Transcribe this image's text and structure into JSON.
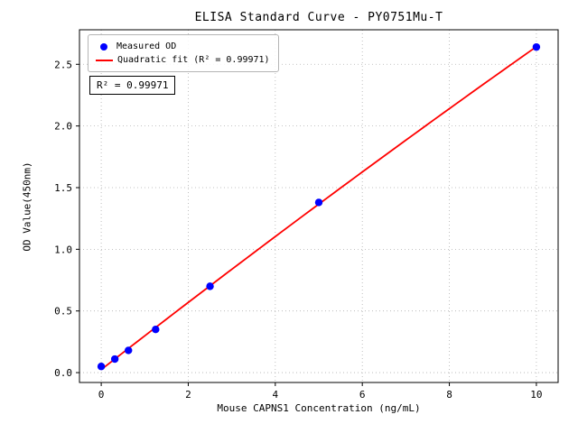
{
  "figure": {
    "background": "#ffffff"
  },
  "chart_data": {
    "type": "scatter",
    "title": "ELISA Standard Curve - PY0751Mu-T",
    "xlabel": "Mouse CAPNS1 Concentration (ng/mL)",
    "ylabel": "OD Value(450nm)",
    "xlim": [
      -0.5,
      10.5
    ],
    "ylim": [
      -0.08,
      2.78
    ],
    "x_ticks": [
      0,
      2,
      4,
      6,
      8,
      10
    ],
    "x_tick_labels": [
      "0",
      "2",
      "4",
      "6",
      "8",
      "10"
    ],
    "y_ticks": [
      0.0,
      0.5,
      1.0,
      1.5,
      2.0,
      2.5
    ],
    "y_tick_labels": [
      "0.0",
      "0.5",
      "1.0",
      "1.5",
      "2.0",
      "2.5"
    ],
    "grid": {
      "on": true,
      "linestyle": "dotted",
      "color": "#b0b0b0"
    },
    "legend": {
      "position": "upper left"
    },
    "series": [
      {
        "name": "Measured OD",
        "type": "scatter",
        "marker": "circle",
        "color": "#0000ff",
        "x": [
          0,
          0.3125,
          0.625,
          1.25,
          2.5,
          5,
          10
        ],
        "y": [
          0.05,
          0.11,
          0.18,
          0.35,
          0.7,
          1.38,
          2.64
        ]
      },
      {
        "name": "Quadratic fit (R² = 0.99971)",
        "type": "line",
        "fit": "quadratic",
        "color": "#ff0000"
      }
    ],
    "annotation": {
      "text": "R² = 0.99971"
    }
  }
}
